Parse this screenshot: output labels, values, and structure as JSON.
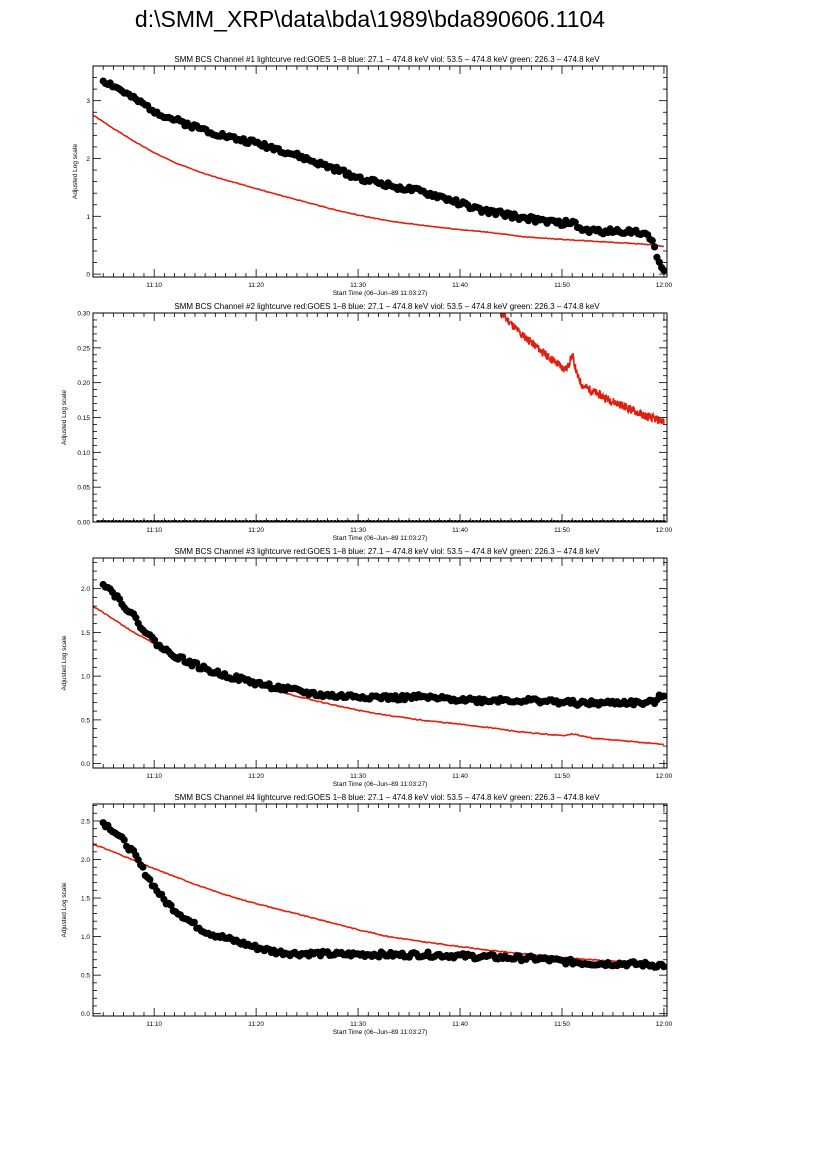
{
  "page_title": "d:\\SMM_XRP\\data\\bda\\1989\\bda890606.1104",
  "colors": {
    "goes": "#e0200f",
    "channel": "#000000"
  },
  "chart_data": [
    {
      "type": "scatter",
      "title": "SMM BCS Channel #1 lightcurve  red:GOES 1–8  blue: 27.1 – 474.8 keV  viol: 53.5 – 474.8 keV  green: 226.3 – 474.8 keV",
      "xlabel": "Start Time (06–Jun–89 11:03:27)",
      "ylabel": "Adjusted Log scale",
      "xlim": [
        4,
        60.3
      ],
      "ylim": [
        -0.05,
        3.6
      ],
      "x_tick_labels": [
        "11:10",
        "11:20",
        "11:30",
        "11:40",
        "11:50",
        "12:00"
      ],
      "x_tick_minutes": [
        10,
        20,
        30,
        40,
        50,
        60
      ],
      "y_ticks": [
        0,
        1,
        2,
        3
      ],
      "y_tick_labels": [
        "0",
        "1",
        "2",
        "3"
      ],
      "series": [
        {
          "type": "line",
          "color": "#e0200f",
          "x": [
            4,
            6,
            8,
            10,
            12,
            15,
            18,
            20,
            22,
            25,
            28,
            30,
            33,
            36,
            40,
            43,
            46,
            50,
            53,
            56,
            58,
            60
          ],
          "y": [
            2.75,
            2.52,
            2.3,
            2.1,
            1.93,
            1.73,
            1.58,
            1.48,
            1.38,
            1.24,
            1.1,
            1.02,
            0.92,
            0.85,
            0.77,
            0.72,
            0.65,
            0.6,
            0.57,
            0.54,
            0.52,
            0.48
          ]
        },
        {
          "type": "scatter",
          "color": "#000000",
          "x": [
            5,
            6,
            7,
            8,
            9,
            10,
            11,
            12,
            14,
            16,
            18,
            20,
            22,
            24,
            26,
            28,
            30,
            32,
            34,
            36,
            38,
            40,
            42,
            44,
            46,
            48,
            50,
            51,
            52,
            54,
            56,
            57,
            58,
            59,
            59.5,
            60
          ],
          "y": [
            3.35,
            3.26,
            3.15,
            3.03,
            2.93,
            2.83,
            2.74,
            2.67,
            2.55,
            2.44,
            2.34,
            2.27,
            2.17,
            2.05,
            1.92,
            1.8,
            1.67,
            1.58,
            1.5,
            1.43,
            1.34,
            1.23,
            1.1,
            1.05,
            0.98,
            0.92,
            0.88,
            0.9,
            0.76,
            0.74,
            0.74,
            0.75,
            0.7,
            0.55,
            0.2,
            0.05
          ]
        }
      ]
    },
    {
      "type": "scatter",
      "title": "SMM BCS Channel #2 lightcurve  red:GOES 1–8  blue: 27.1 – 474.8 keV  viol: 53.5 – 474.8 keV  green: 226.3 – 474.8 keV",
      "xlabel": "Start Time (06–Jun–89 11:03:27)",
      "ylabel": "Adjusted Log scale",
      "xlim": [
        4,
        60.3
      ],
      "ylim": [
        0,
        0.3
      ],
      "x_tick_labels": [
        "11:10",
        "11:20",
        "11:30",
        "11:40",
        "11:50",
        "12:00"
      ],
      "x_tick_minutes": [
        10,
        20,
        30,
        40,
        50,
        60
      ],
      "y_ticks": [
        0,
        0.05,
        0.1,
        0.15,
        0.2,
        0.25,
        0.3
      ],
      "y_tick_labels": [
        "0.00",
        "0.05",
        "0.10",
        "0.15",
        "0.20",
        "0.25",
        "0.30"
      ],
      "series": [
        {
          "type": "line",
          "color": "#e0200f",
          "x": [
            44,
            45,
            46,
            47,
            48,
            49,
            50,
            50.5,
            51,
            51.5,
            52,
            53,
            54,
            55,
            56,
            57,
            58,
            59,
            60
          ],
          "y": [
            0.3,
            0.285,
            0.27,
            0.258,
            0.245,
            0.233,
            0.222,
            0.22,
            0.24,
            0.21,
            0.196,
            0.188,
            0.18,
            0.173,
            0.167,
            0.16,
            0.153,
            0.148,
            0.145
          ]
        },
        {
          "type": "scatter",
          "color": "#000000",
          "x": [
            4.5,
            10,
            20,
            30,
            40,
            50,
            60
          ],
          "y": [
            0,
            0,
            0,
            0,
            0,
            0,
            0
          ]
        }
      ]
    },
    {
      "type": "scatter",
      "title": "SMM BCS Channel #3 lightcurve  red:GOES 1–8  blue: 27.1 – 474.8 keV  viol: 53.5 – 474.8 keV  green: 226.3 – 474.8 keV",
      "xlabel": "Start Time (06–Jun–89 11:03:27)",
      "ylabel": "Adjusted Log scale",
      "xlim": [
        4,
        60.3
      ],
      "ylim": [
        -0.05,
        2.35
      ],
      "x_tick_labels": [
        "11:10",
        "11:20",
        "11:30",
        "11:40",
        "11:50",
        "12:00"
      ],
      "x_tick_minutes": [
        10,
        20,
        30,
        40,
        50,
        60
      ],
      "y_ticks": [
        0,
        0.5,
        1,
        1.5,
        2
      ],
      "y_tick_labels": [
        "0.0",
        "0.5",
        "1.0",
        "1.5",
        "2.0"
      ],
      "series": [
        {
          "type": "line",
          "color": "#e0200f",
          "x": [
            4,
            6,
            8,
            10,
            12,
            15,
            18,
            20,
            22,
            25,
            28,
            30,
            33,
            36,
            40,
            43,
            46,
            50,
            51,
            53,
            56,
            60
          ],
          "y": [
            1.8,
            1.65,
            1.5,
            1.37,
            1.25,
            1.1,
            0.98,
            0.9,
            0.83,
            0.74,
            0.66,
            0.61,
            0.55,
            0.5,
            0.45,
            0.41,
            0.36,
            0.32,
            0.34,
            0.29,
            0.26,
            0.22
          ]
        },
        {
          "type": "scatter",
          "color": "#000000",
          "x": [
            5,
            6,
            7,
            8,
            9,
            10,
            11,
            12,
            13,
            14,
            15,
            16,
            18,
            20,
            22,
            24,
            26,
            28,
            30,
            32,
            34,
            36,
            38,
            40,
            42,
            44,
            46,
            48,
            50,
            52,
            54,
            56,
            58,
            59,
            60
          ],
          "y": [
            2.07,
            1.95,
            1.82,
            1.68,
            1.53,
            1.4,
            1.3,
            1.24,
            1.18,
            1.13,
            1.08,
            1.04,
            0.98,
            0.92,
            0.87,
            0.83,
            0.79,
            0.77,
            0.77,
            0.76,
            0.75,
            0.76,
            0.74,
            0.74,
            0.72,
            0.73,
            0.72,
            0.72,
            0.7,
            0.69,
            0.69,
            0.7,
            0.69,
            0.7,
            0.8
          ]
        }
      ]
    },
    {
      "type": "scatter",
      "title": "SMM BCS Channel #4 lightcurve  red:GOES 1–8  blue: 27.1 – 474.8 keV  viol: 53.5 – 474.8 keV  green: 226.3 – 474.8 keV",
      "xlabel": "Start Time (06–Jun–89 11:03:27)",
      "ylabel": "Adjusted Log scale",
      "xlim": [
        4,
        60.3
      ],
      "ylim": [
        -0.03,
        2.72
      ],
      "x_tick_labels": [
        "11:10",
        "11:20",
        "11:30",
        "11:40",
        "11:50",
        "12:00"
      ],
      "x_tick_minutes": [
        10,
        20,
        30,
        40,
        50,
        60
      ],
      "y_ticks": [
        0,
        0.5,
        1,
        1.5,
        2,
        2.5
      ],
      "y_tick_labels": [
        "0.0",
        "0.5",
        "1.0",
        "1.5",
        "2.0",
        "2.5"
      ],
      "series": [
        {
          "type": "line",
          "color": "#e0200f",
          "x": [
            4,
            6,
            8,
            10,
            12,
            15,
            18,
            20,
            22,
            25,
            28,
            30,
            33,
            36,
            40,
            43,
            46,
            50,
            53,
            56,
            60
          ],
          "y": [
            2.2,
            2.1,
            1.99,
            1.88,
            1.78,
            1.63,
            1.5,
            1.43,
            1.36,
            1.26,
            1.16,
            1.09,
            1.0,
            0.94,
            0.87,
            0.82,
            0.78,
            0.73,
            0.7,
            0.67,
            0.64
          ]
        },
        {
          "type": "scatter",
          "color": "#000000",
          "x": [
            5,
            6,
            7,
            8,
            9,
            10,
            11,
            12,
            13,
            14,
            15,
            16,
            18,
            20,
            22,
            24,
            26,
            28,
            30,
            32,
            34,
            36,
            38,
            40,
            42,
            44,
            46,
            48,
            50,
            52,
            54,
            56,
            58,
            59,
            60
          ],
          "y": [
            2.48,
            2.38,
            2.24,
            2.08,
            1.85,
            1.65,
            1.47,
            1.35,
            1.25,
            1.15,
            1.07,
            1.02,
            0.94,
            0.86,
            0.8,
            0.78,
            0.78,
            0.77,
            0.77,
            0.77,
            0.76,
            0.77,
            0.76,
            0.75,
            0.74,
            0.73,
            0.72,
            0.71,
            0.68,
            0.66,
            0.65,
            0.65,
            0.64,
            0.63,
            0.63
          ]
        }
      ]
    }
  ]
}
